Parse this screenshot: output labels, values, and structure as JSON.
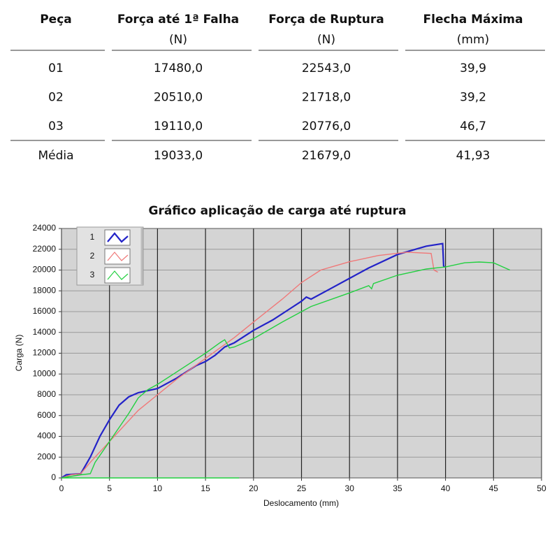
{
  "table": {
    "header": [
      [
        "Peça"
      ],
      [
        "Força até 1ª Falha",
        "(N)"
      ],
      [
        "Força de Ruptura",
        "(N)"
      ],
      [
        "Flecha Máxima",
        "(mm)"
      ]
    ],
    "rows": [
      [
        "01",
        "17480,0",
        "22543,0",
        "39,9"
      ],
      [
        "02",
        "20510,0",
        "21718,0",
        "39,2"
      ],
      [
        "03",
        "19110,0",
        "20776,0",
        "46,7"
      ]
    ],
    "footer": [
      "Média",
      "19033,0",
      "21679,0",
      "41,93"
    ]
  },
  "chart_data": {
    "type": "line",
    "title": "Gráfico aplicação de carga até ruptura",
    "x_label": "Deslocamento (mm)",
    "y_label": "Carga (N)",
    "xlim": [
      0,
      50
    ],
    "xticks": [
      0,
      5,
      10,
      15,
      20,
      25,
      30,
      35,
      40,
      45,
      50
    ],
    "ylim": [
      0,
      24000
    ],
    "yticks": [
      0,
      2000,
      4000,
      6000,
      8000,
      10000,
      12000,
      14000,
      16000,
      18000,
      20000,
      22000,
      24000
    ],
    "grid": true,
    "legend": "top-left",
    "series": [
      {
        "name": "1",
        "color": "#2323c8",
        "x": [
          0,
          0.5,
          2,
          3,
          4,
          5,
          6,
          7,
          8,
          10,
          12,
          14,
          15,
          16,
          17,
          18,
          20,
          22,
          24,
          25,
          25.5,
          26,
          28,
          30,
          32,
          35,
          38,
          39.7,
          39.8,
          39.9
        ],
        "values": [
          0,
          300,
          400,
          2000,
          4000,
          5600,
          7000,
          7800,
          8200,
          8600,
          9600,
          10800,
          11200,
          11800,
          12600,
          13000,
          14200,
          15200,
          16400,
          17000,
          17400,
          17200,
          18200,
          19200,
          20200,
          21500,
          22300,
          22543,
          20400,
          20300
        ]
      },
      {
        "name": "2",
        "color": "#f07878",
        "x": [
          0,
          1,
          2,
          3,
          5,
          8,
          10,
          12,
          15,
          18,
          20,
          23,
          25,
          27,
          30,
          33,
          36,
          38.5,
          38.8,
          39.2
        ],
        "values": [
          0,
          300,
          400,
          1500,
          3500,
          6500,
          8000,
          9500,
          11500,
          13500,
          15000,
          17200,
          18800,
          20000,
          20800,
          21400,
          21718,
          21600,
          20000,
          19800
        ]
      },
      {
        "name": "3",
        "color": "#22d040",
        "x": [
          0,
          18.5,
          null,
          0,
          2,
          3,
          3.5,
          5,
          7,
          8,
          9,
          10,
          12,
          15,
          16.5,
          17,
          17.5,
          18,
          20,
          23,
          26,
          30,
          32,
          32.3,
          32.5,
          35,
          38,
          40,
          42,
          43.5,
          45,
          46.7
        ],
        "values": [
          0,
          0,
          null,
          0,
          300,
          400,
          1500,
          3500,
          6200,
          7700,
          8500,
          9000,
          10200,
          12000,
          13000,
          13300,
          12500,
          12600,
          13400,
          15000,
          16500,
          17800,
          18500,
          18200,
          18700,
          19500,
          20100,
          20300,
          20700,
          20776,
          20700,
          20000
        ]
      }
    ]
  }
}
